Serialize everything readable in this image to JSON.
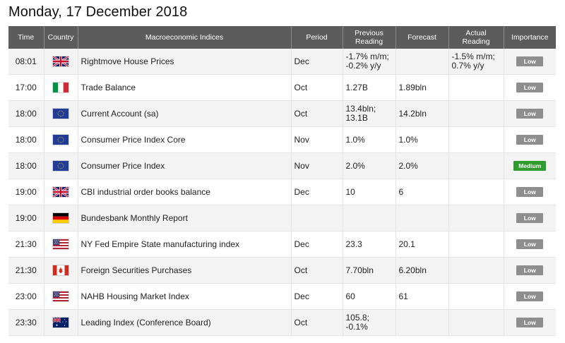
{
  "page": {
    "title": "Monday, 17 December 2018"
  },
  "table": {
    "headers": {
      "time": "Time",
      "country": "Country",
      "index": "Macroeconomic Indices",
      "period": "Period",
      "prev_line1": "Previous",
      "prev_line2": "Reading",
      "forecast": "Forecast",
      "actual_line1": "Actual",
      "actual_line2": "Reading",
      "importance": "Importance"
    },
    "rows": [
      {
        "time": "08:01",
        "country": "uk",
        "index": "Rightmove House Prices",
        "period": "Dec",
        "prev1": "-1.7% m/m;",
        "prev2": "-0.2% y/y",
        "forecast": "",
        "actual1": "-1.5% m/m;",
        "actual2": "0.7% y/y",
        "importance": "Low",
        "importance_color": "#8e8e8e"
      },
      {
        "time": "17:00",
        "country": "italy",
        "index": "Trade Balance",
        "period": "Oct",
        "prev1": "1.27B",
        "prev2": "",
        "forecast": "1.89bln",
        "actual1": "",
        "actual2": "",
        "importance": "Low",
        "importance_color": "#8e8e8e"
      },
      {
        "time": "18:00",
        "country": "eu",
        "index": "Current Account (sa)",
        "period": "Oct",
        "prev1": "13.4bln;",
        "prev2": "13.1B",
        "forecast": "14.2bln",
        "actual1": "",
        "actual2": "",
        "importance": "Low",
        "importance_color": "#8e8e8e"
      },
      {
        "time": "18:00",
        "country": "eu",
        "index": "Consumer Price Index Core",
        "period": "Nov",
        "prev1": "1.0%",
        "prev2": "",
        "forecast": "1.0%",
        "actual1": "",
        "actual2": "",
        "importance": "Low",
        "importance_color": "#8e8e8e"
      },
      {
        "time": "18:00",
        "country": "eu",
        "index": "Consumer Price Index",
        "period": "Nov",
        "prev1": "2.0%",
        "prev2": "",
        "forecast": "2.0%",
        "actual1": "",
        "actual2": "",
        "importance": "Medium",
        "importance_color": "#2e9d2e"
      },
      {
        "time": "19:00",
        "country": "uk",
        "index": "CBI industrial order books balance",
        "period": "Dec",
        "prev1": "10",
        "prev2": "",
        "forecast": "6",
        "actual1": "",
        "actual2": "",
        "importance": "Low",
        "importance_color": "#8e8e8e"
      },
      {
        "time": "19:00",
        "country": "germany",
        "index": "Bundesbank Monthly Report",
        "period": "",
        "prev1": "",
        "prev2": "",
        "forecast": "",
        "actual1": "",
        "actual2": "",
        "importance": "Low",
        "importance_color": "#8e8e8e"
      },
      {
        "time": "21:30",
        "country": "usa",
        "index": "NY Fed Empire State manufacturing index",
        "period": "Dec",
        "prev1": "23.3",
        "prev2": "",
        "forecast": "20.1",
        "actual1": "",
        "actual2": "",
        "importance": "Low",
        "importance_color": "#8e8e8e"
      },
      {
        "time": "21:30",
        "country": "canada",
        "index": "Foreign Securities Purchases",
        "period": "Oct",
        "prev1": "7.70bln",
        "prev2": "",
        "forecast": "6.20bln",
        "actual1": "",
        "actual2": "",
        "importance": "Low",
        "importance_color": "#8e8e8e"
      },
      {
        "time": "23:00",
        "country": "usa",
        "index": "NAHB Housing Market Index",
        "period": "Dec",
        "prev1": "60",
        "prev2": "",
        "forecast": "61",
        "actual1": "",
        "actual2": "",
        "importance": "Low",
        "importance_color": "#8e8e8e"
      },
      {
        "time": "23:30",
        "country": "australia",
        "index": "Leading Index (Conference Board)",
        "period": "Oct",
        "prev1": "105.8;",
        "prev2": "-0.1%",
        "forecast": "",
        "actual1": "",
        "actual2": "",
        "importance": "Low",
        "importance_color": "#8e8e8e"
      }
    ]
  }
}
